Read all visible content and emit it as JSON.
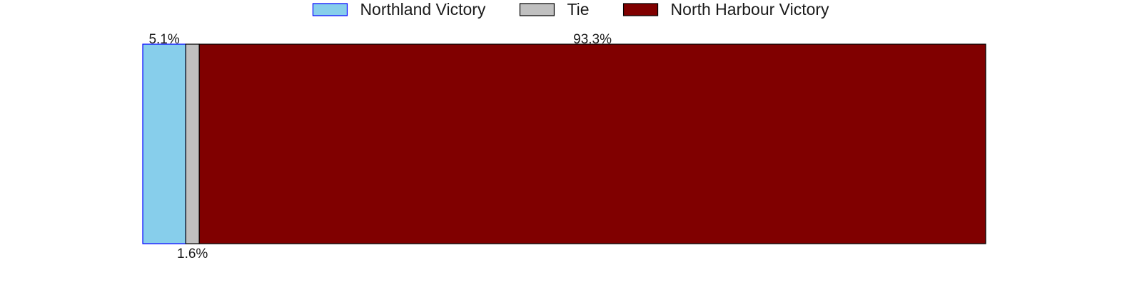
{
  "chart_data": {
    "type": "bar",
    "orientation": "horizontal",
    "stacked": true,
    "normalized_percent": true,
    "xlim": [
      0,
      100
    ],
    "grid": false,
    "legend_placement": "top-center",
    "segments": [
      {
        "name": "Northland Victory",
        "value": 5.1,
        "label": "5.1%",
        "label_position": "top",
        "color": "#87ceeb",
        "edge_color": "#0000ff"
      },
      {
        "name": "Tie",
        "value": 1.6,
        "label": "1.6%",
        "label_position": "bottom",
        "color": "#c0c0c0",
        "edge_color": "#000000"
      },
      {
        "name": "North Harbour Victory",
        "value": 93.3,
        "label": "93.3%",
        "label_position": "top",
        "color": "#800000",
        "edge_color": "#000000"
      }
    ]
  }
}
